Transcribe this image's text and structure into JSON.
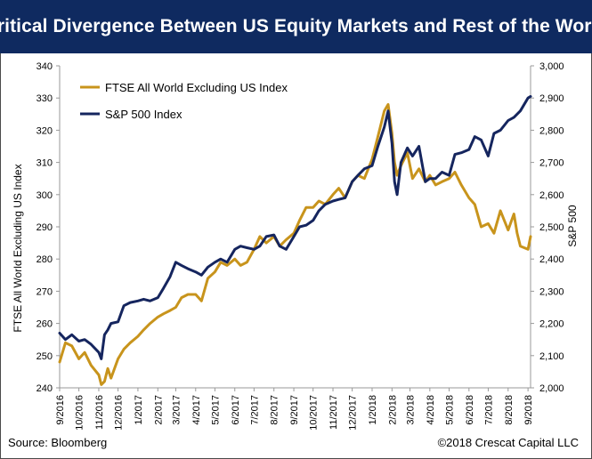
{
  "header": {
    "title": "Critical Divergence Between US Equity Markets and Rest of the World"
  },
  "footer": {
    "source": "Source: Bloomberg",
    "copyright": "©2018 Crescat Capital LLC"
  },
  "colors": {
    "title_bg": "#0f2a60",
    "ftse": "#c8941c",
    "sp500": "#15255e"
  },
  "chart_data": {
    "type": "line",
    "title": "Critical Divergence Between US Equity Markets and Rest of the World",
    "xlabel": "",
    "ylabel_left": "FTSE All World Excluding US Index",
    "ylabel_right": "S&P 500",
    "ylim_left": [
      240,
      340
    ],
    "ylim_right": [
      2000,
      3000
    ],
    "y_ticks_left": [
      "240",
      "250",
      "260",
      "270",
      "280",
      "290",
      "300",
      "310",
      "320",
      "330",
      "340"
    ],
    "y_ticks_right": [
      "2,000",
      "2,100",
      "2,200",
      "2,300",
      "2,400",
      "2,500",
      "2,600",
      "2,700",
      "2,800",
      "2,900",
      "3,000"
    ],
    "x_ticks": [
      "9/2016",
      "10/2016",
      "11/2016",
      "12/2016",
      "1/2017",
      "2/2017",
      "3/2017",
      "4/2017",
      "5/2017",
      "6/2017",
      "7/2017",
      "8/2017",
      "9/2017",
      "10/2017",
      "11/2017",
      "12/2017",
      "1/2018",
      "2/2018",
      "3/2018",
      "4/2018",
      "5/2018",
      "6/2018",
      "7/2018",
      "8/2018",
      "9/2018"
    ],
    "grid": false,
    "legend_position": "top-left",
    "series": [
      {
        "name": "FTSE All World Excluding US Index",
        "axis": "left",
        "x": [
          "2016-09-01",
          "2016-09-10",
          "2016-09-20",
          "2016-10-01",
          "2016-10-10",
          "2016-10-20",
          "2016-11-01",
          "2016-11-05",
          "2016-11-10",
          "2016-11-15",
          "2016-11-20",
          "2016-12-01",
          "2016-12-10",
          "2016-12-20",
          "2017-01-01",
          "2017-01-10",
          "2017-01-20",
          "2017-02-01",
          "2017-02-10",
          "2017-02-20",
          "2017-03-01",
          "2017-03-10",
          "2017-03-20",
          "2017-04-01",
          "2017-04-10",
          "2017-04-20",
          "2017-05-01",
          "2017-05-10",
          "2017-05-20",
          "2017-06-01",
          "2017-06-10",
          "2017-06-20",
          "2017-07-01",
          "2017-07-10",
          "2017-07-20",
          "2017-08-01",
          "2017-08-10",
          "2017-08-20",
          "2017-09-01",
          "2017-09-10",
          "2017-09-20",
          "2017-10-01",
          "2017-10-10",
          "2017-10-20",
          "2017-11-01",
          "2017-11-10",
          "2017-11-20",
          "2017-12-01",
          "2017-12-10",
          "2017-12-20",
          "2018-01-01",
          "2018-01-10",
          "2018-01-20",
          "2018-01-26",
          "2018-02-01",
          "2018-02-05",
          "2018-02-09",
          "2018-02-15",
          "2018-02-25",
          "2018-03-05",
          "2018-03-15",
          "2018-03-25",
          "2018-04-01",
          "2018-04-10",
          "2018-04-20",
          "2018-05-01",
          "2018-05-10",
          "2018-05-20",
          "2018-06-01",
          "2018-06-10",
          "2018-06-20",
          "2018-07-01",
          "2018-07-10",
          "2018-07-20",
          "2018-08-01",
          "2018-08-10",
          "2018-08-15",
          "2018-08-20",
          "2018-09-01",
          "2018-09-05"
        ],
        "values": [
          248,
          254,
          253,
          249,
          251,
          247,
          244,
          241,
          242,
          246,
          243,
          249,
          252,
          254,
          256,
          258,
          260,
          262,
          263,
          264,
          265,
          268,
          269,
          269,
          267,
          274,
          276,
          279,
          278,
          280,
          278,
          279,
          283,
          287,
          285,
          287,
          284,
          286,
          288,
          292,
          296,
          296,
          298,
          297,
          300,
          302,
          299,
          304,
          306,
          305,
          311,
          318,
          326,
          328,
          319,
          310,
          306,
          309,
          313,
          305,
          308,
          304,
          306,
          303,
          304,
          305,
          307,
          303,
          299,
          297,
          290,
          291,
          288,
          295,
          289,
          294,
          288,
          284,
          283,
          287
        ]
      },
      {
        "name": "S&P 500 Index",
        "axis": "right",
        "x": [
          "2016-09-01",
          "2016-09-10",
          "2016-09-20",
          "2016-10-01",
          "2016-10-10",
          "2016-10-20",
          "2016-11-01",
          "2016-11-05",
          "2016-11-10",
          "2016-11-15",
          "2016-11-20",
          "2016-12-01",
          "2016-12-10",
          "2016-12-20",
          "2017-01-01",
          "2017-01-10",
          "2017-01-20",
          "2017-02-01",
          "2017-02-10",
          "2017-02-20",
          "2017-03-01",
          "2017-03-10",
          "2017-03-20",
          "2017-04-01",
          "2017-04-10",
          "2017-04-20",
          "2017-05-01",
          "2017-05-10",
          "2017-05-20",
          "2017-06-01",
          "2017-06-10",
          "2017-06-20",
          "2017-07-01",
          "2017-07-10",
          "2017-07-20",
          "2017-08-01",
          "2017-08-10",
          "2017-08-20",
          "2017-09-01",
          "2017-09-10",
          "2017-09-20",
          "2017-10-01",
          "2017-10-10",
          "2017-10-20",
          "2017-11-01",
          "2017-11-10",
          "2017-11-20",
          "2017-12-01",
          "2017-12-10",
          "2017-12-20",
          "2018-01-01",
          "2018-01-10",
          "2018-01-20",
          "2018-01-26",
          "2018-02-01",
          "2018-02-05",
          "2018-02-09",
          "2018-02-15",
          "2018-02-25",
          "2018-03-05",
          "2018-03-15",
          "2018-03-25",
          "2018-04-01",
          "2018-04-10",
          "2018-04-20",
          "2018-05-01",
          "2018-05-10",
          "2018-05-20",
          "2018-06-01",
          "2018-06-10",
          "2018-06-20",
          "2018-07-01",
          "2018-07-10",
          "2018-07-20",
          "2018-08-01",
          "2018-08-10",
          "2018-08-15",
          "2018-08-20",
          "2018-09-01",
          "2018-09-05"
        ],
        "values": [
          2170,
          2150,
          2165,
          2145,
          2150,
          2135,
          2110,
          2090,
          2165,
          2180,
          2200,
          2205,
          2255,
          2265,
          2270,
          2275,
          2270,
          2280,
          2310,
          2345,
          2390,
          2380,
          2370,
          2360,
          2350,
          2375,
          2390,
          2400,
          2390,
          2430,
          2440,
          2435,
          2430,
          2440,
          2470,
          2475,
          2440,
          2430,
          2470,
          2500,
          2505,
          2520,
          2550,
          2570,
          2580,
          2585,
          2590,
          2640,
          2660,
          2680,
          2690,
          2750,
          2810,
          2860,
          2760,
          2640,
          2600,
          2700,
          2745,
          2720,
          2750,
          2640,
          2650,
          2650,
          2670,
          2660,
          2725,
          2730,
          2740,
          2780,
          2770,
          2720,
          2790,
          2800,
          2830,
          2840,
          2850,
          2860,
          2900,
          2905
        ]
      }
    ]
  }
}
